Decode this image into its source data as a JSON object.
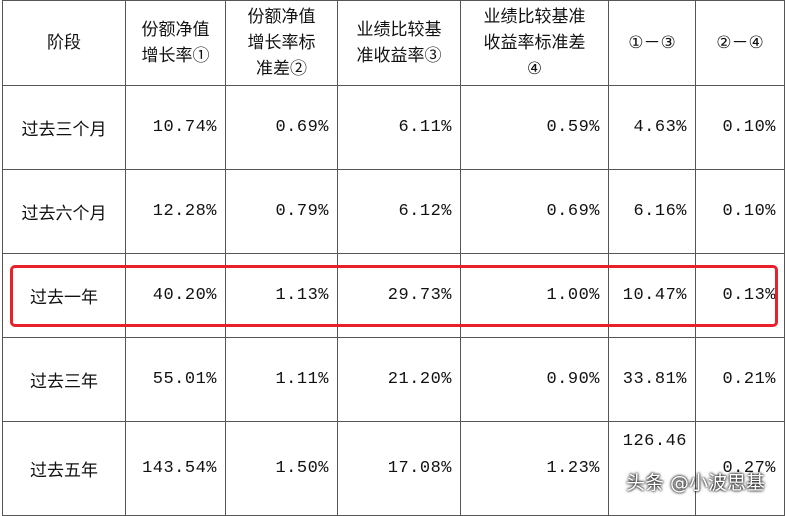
{
  "table": {
    "header": [
      [
        "阶段"
      ],
      [
        "份额净值",
        "增长率①"
      ],
      [
        "份额净值",
        "增长率标",
        "准差②"
      ],
      [
        "业绩比较基",
        "准收益率③"
      ],
      [
        "业绩比较基准",
        "收益率标准差",
        "④"
      ],
      [
        "①－③"
      ],
      [
        "②－④"
      ]
    ],
    "rows": [
      [
        "过去三个月",
        "10.74%",
        "0.69%",
        "6.11%",
        "0.59%",
        "4.63%",
        "0.10%"
      ],
      [
        "过去六个月",
        "12.28%",
        "0.79%",
        "6.12%",
        "0.69%",
        "6.16%",
        "0.10%"
      ],
      [
        "过去一年",
        "40.20%",
        "1.13%",
        "29.73%",
        "1.00%",
        "10.47%",
        "0.13%"
      ],
      [
        "过去三年",
        "55.01%",
        "1.11%",
        "21.20%",
        "0.90%",
        "33.81%",
        "0.21%"
      ],
      [
        "过去五年",
        "143.54%",
        "1.50%",
        "17.08%",
        "1.23%",
        "126.46",
        "0.27%"
      ]
    ]
  },
  "watermark": "头条 @小波思基"
}
